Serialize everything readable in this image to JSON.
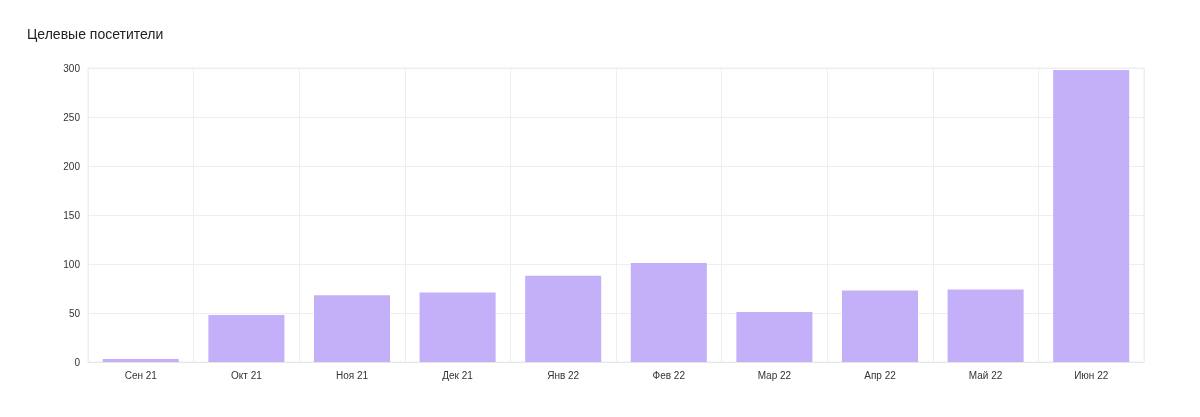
{
  "chart_data": {
    "type": "bar",
    "title": "Целевые посетители",
    "categories": [
      "Сен 21",
      "Окт 21",
      "Ноя 21",
      "Дек 21",
      "Янв 22",
      "Фев 22",
      "Мар 22",
      "Апр 22",
      "Май 22",
      "Июн 22"
    ],
    "values": [
      3,
      48,
      68,
      71,
      88,
      101,
      51,
      73,
      74,
      298
    ],
    "color": "#c4b0f8",
    "ylim": [
      0,
      300
    ],
    "yticks": [
      0,
      50,
      100,
      150,
      200,
      250,
      300
    ],
    "grid": true
  }
}
